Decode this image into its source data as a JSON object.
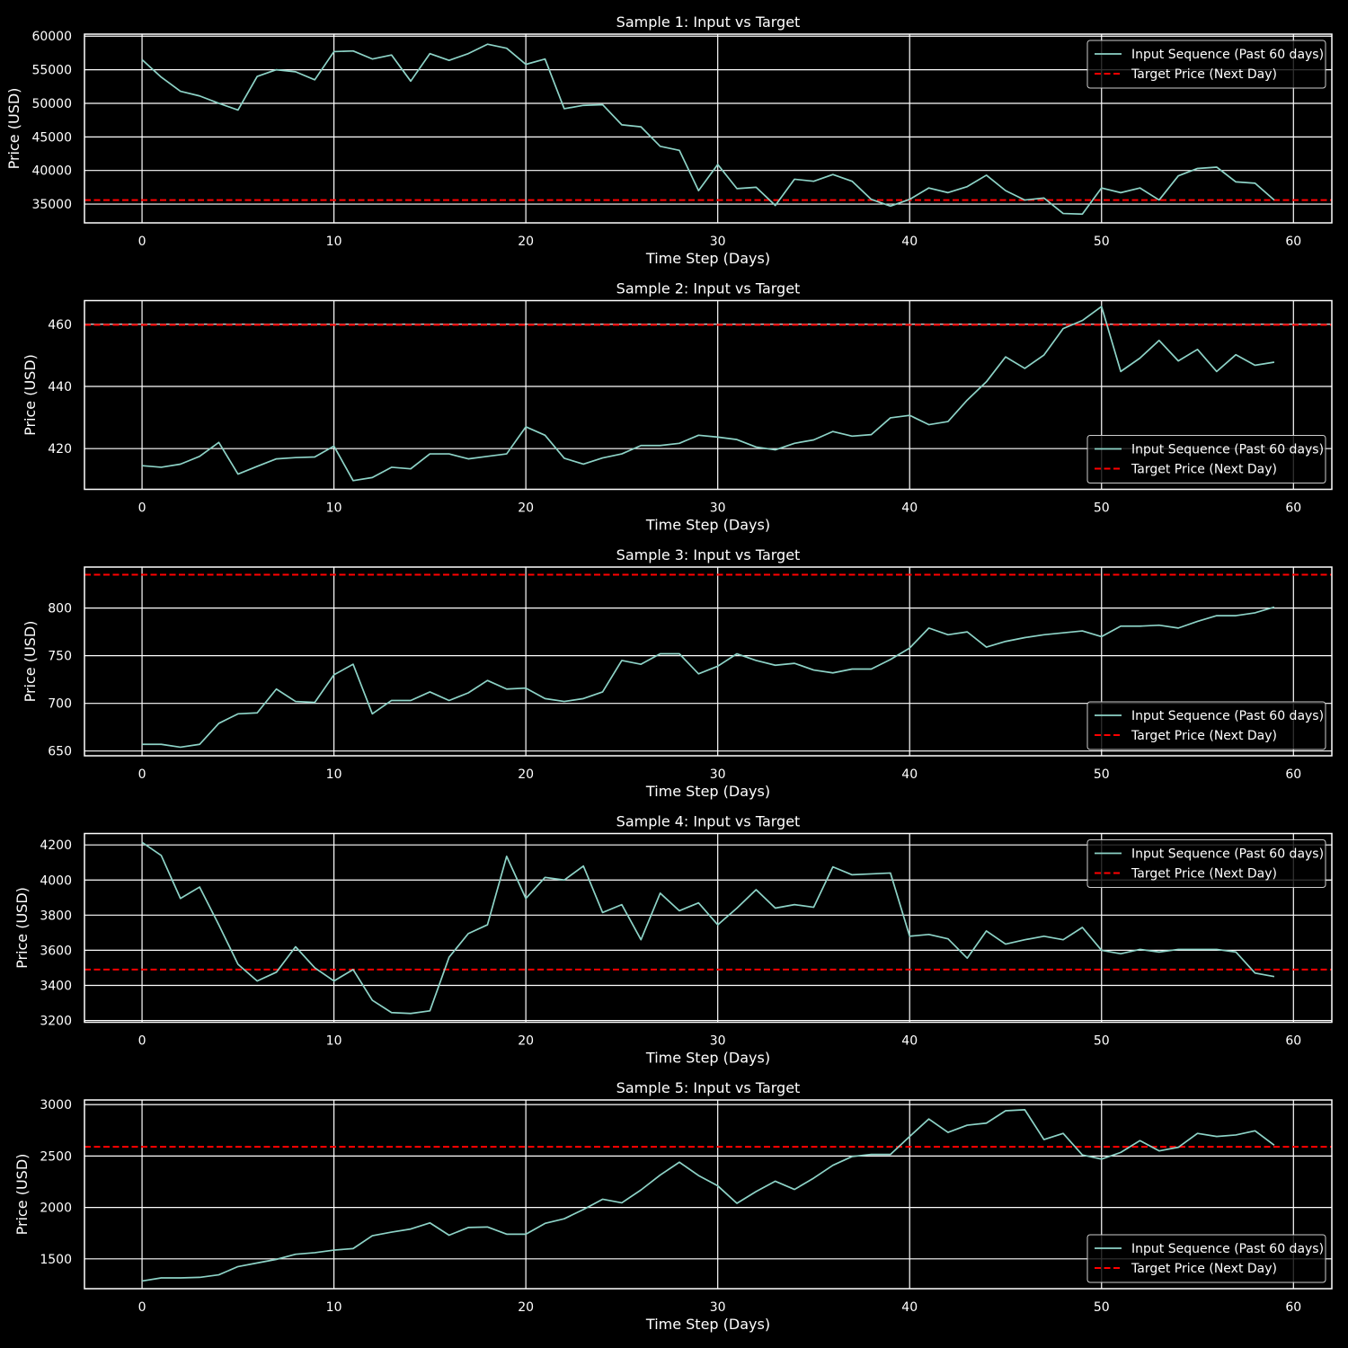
{
  "colors": {
    "background": "#000000",
    "foreground": "#ffffff",
    "grid": "#ffffff",
    "input_line": "#8dd3c7",
    "target_line": "#ff0000"
  },
  "legend": {
    "input_label": "Input Sequence (Past 60 days)",
    "target_label": "Target Price (Next Day)"
  },
  "chart_data": [
    {
      "type": "line",
      "title": "Sample 1: Input vs Target",
      "xlabel": "Time Step (Days)",
      "ylabel": "Price (USD)",
      "xlim": [
        -3,
        62
      ],
      "xticks": [
        0,
        10,
        20,
        30,
        40,
        50,
        60
      ],
      "ylim": [
        32200,
        60300
      ],
      "yticks": [
        35000,
        40000,
        45000,
        50000,
        55000,
        60000
      ],
      "legend_loc": "upper right",
      "grid": true,
      "target": 35600,
      "series": [
        {
          "name": "Input Sequence (Past 60 days)",
          "values": [
            56500,
            53900,
            51800,
            51100,
            50000,
            49000,
            54000,
            55000,
            54700,
            53500,
            57700,
            57800,
            56600,
            57200,
            53300,
            57400,
            56400,
            57400,
            58800,
            58200,
            55800,
            56600,
            49200,
            49700,
            49800,
            46800,
            46500,
            43600,
            43000,
            37000,
            40900,
            37300,
            37500,
            34800,
            38700,
            38400,
            39400,
            38400,
            35700,
            34700,
            35700,
            37400,
            36700,
            37600,
            39300,
            37000,
            35600,
            35900,
            33600,
            33500,
            37400,
            36700,
            37400,
            35600,
            39200,
            40300,
            40500,
            38300,
            38100,
            35600
          ]
        }
      ]
    },
    {
      "type": "line",
      "title": "Sample 2: Input vs Target",
      "xlabel": "Time Step (Days)",
      "ylabel": "Price (USD)",
      "xlim": [
        -3,
        62
      ],
      "xticks": [
        0,
        10,
        20,
        30,
        40,
        50,
        60
      ],
      "ylim": [
        406.9,
        467.6
      ],
      "yticks": [
        420,
        440,
        460
      ],
      "legend_loc": "lower right",
      "grid": true,
      "target": 459.8,
      "series": [
        {
          "name": "Input Sequence (Past 60 days)",
          "values": [
            414.5,
            414.0,
            415.0,
            417.5,
            422.0,
            411.8,
            414.3,
            416.7,
            417.1,
            417.3,
            420.8,
            409.7,
            410.7,
            414.0,
            413.5,
            418.3,
            418.3,
            416.7,
            417.5,
            418.3,
            427.0,
            424.3,
            416.9,
            415.0,
            417.0,
            418.3,
            421.0,
            421.0,
            421.7,
            424.3,
            423.7,
            422.9,
            420.5,
            419.6,
            421.7,
            422.8,
            425.5,
            424.0,
            424.5,
            429.9,
            430.7,
            427.7,
            428.7,
            435.6,
            441.5,
            449.5,
            445.8,
            450.1,
            458.6,
            461.2,
            465.7,
            444.8,
            449.1,
            454.8,
            448.2,
            451.9,
            444.8,
            450.2,
            446.8,
            447.8
          ]
        }
      ]
    },
    {
      "type": "line",
      "title": "Sample 3: Input vs Target",
      "xlabel": "Time Step (Days)",
      "ylabel": "Price (USD)",
      "xlim": [
        -3,
        62
      ],
      "xticks": [
        0,
        10,
        20,
        30,
        40,
        50,
        60
      ],
      "ylim": [
        645,
        843
      ],
      "yticks": [
        650,
        700,
        750,
        800
      ],
      "legend_loc": "lower right",
      "grid": true,
      "target": 835,
      "series": [
        {
          "name": "Input Sequence (Past 60 days)",
          "values": [
            657,
            657,
            654,
            657,
            679,
            689,
            690,
            715,
            702,
            701,
            730,
            741,
            689,
            703,
            703,
            712,
            703,
            711,
            724,
            715,
            716,
            705,
            702,
            705,
            712,
            745,
            741,
            752,
            752,
            731,
            739,
            752,
            745,
            740,
            742,
            735,
            732,
            736,
            736,
            746,
            758,
            779,
            772,
            775,
            759,
            765,
            769,
            772,
            774,
            776,
            770,
            781,
            781,
            782,
            779,
            786,
            792,
            792,
            795,
            801
          ]
        }
      ]
    },
    {
      "type": "line",
      "title": "Sample 4: Input vs Target",
      "xlabel": "Time Step (Days)",
      "ylabel": "Price (USD)",
      "xlim": [
        -3,
        62
      ],
      "xticks": [
        0,
        10,
        20,
        30,
        40,
        50,
        60
      ],
      "ylim": [
        3190,
        4265
      ],
      "yticks": [
        3200,
        3400,
        3600,
        3800,
        4000,
        4200
      ],
      "legend_loc": "upper right",
      "grid": true,
      "target": 3490,
      "series": [
        {
          "name": "Input Sequence (Past 60 days)",
          "values": [
            4215,
            4140,
            3895,
            3960,
            3745,
            3520,
            3425,
            3475,
            3620,
            3500,
            3425,
            3490,
            3315,
            3245,
            3240,
            3255,
            3560,
            3695,
            3745,
            4135,
            3895,
            4015,
            4000,
            4080,
            3815,
            3860,
            3660,
            3925,
            3825,
            3870,
            3745,
            3840,
            3945,
            3840,
            3860,
            3845,
            4075,
            4030,
            4035,
            4040,
            3680,
            3690,
            3665,
            3555,
            3710,
            3635,
            3660,
            3680,
            3660,
            3730,
            3600,
            3580,
            3605,
            3590,
            3605,
            3605,
            3605,
            3590,
            3470,
            3450
          ]
        }
      ]
    },
    {
      "type": "line",
      "title": "Sample 5: Input vs Target",
      "xlabel": "Time Step (Days)",
      "ylabel": "Price (USD)",
      "xlim": [
        -3,
        62
      ],
      "xticks": [
        0,
        10,
        20,
        30,
        40,
        50,
        60
      ],
      "ylim": [
        1210,
        3045
      ],
      "yticks": [
        1500,
        2000,
        2500,
        3000
      ],
      "legend_loc": "lower right",
      "grid": true,
      "target": 2590,
      "series": [
        {
          "name": "Input Sequence (Past 60 days)",
          "values": [
            1285,
            1315,
            1315,
            1320,
            1345,
            1425,
            1460,
            1495,
            1545,
            1560,
            1585,
            1600,
            1725,
            1760,
            1790,
            1850,
            1730,
            1805,
            1810,
            1740,
            1740,
            1845,
            1890,
            1980,
            2080,
            2045,
            2170,
            2315,
            2440,
            2310,
            2210,
            2040,
            2155,
            2255,
            2175,
            2285,
            2410,
            2495,
            2515,
            2515,
            2690,
            2860,
            2730,
            2800,
            2820,
            2940,
            2950,
            2660,
            2720,
            2510,
            2470,
            2535,
            2650,
            2550,
            2585,
            2720,
            2690,
            2705,
            2745,
            2605
          ]
        }
      ]
    }
  ]
}
